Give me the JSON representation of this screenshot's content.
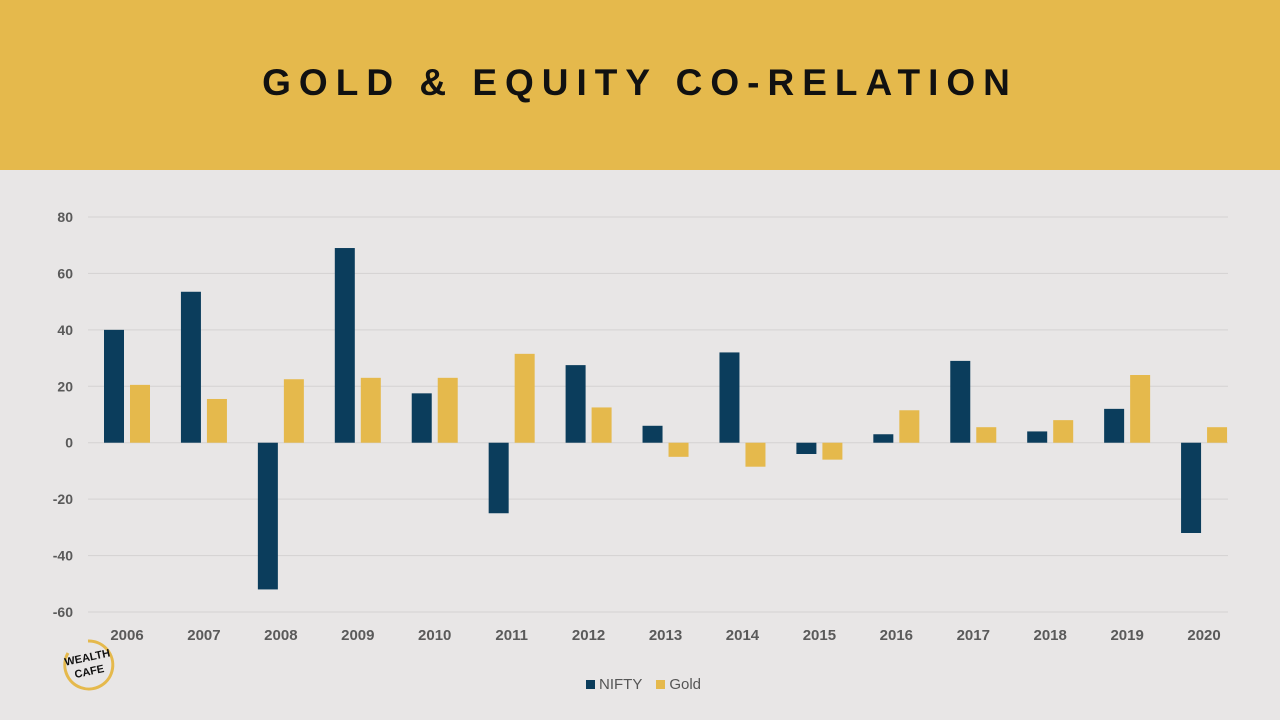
{
  "header": {
    "title": "GOLD & EQUITY CO-RELATION"
  },
  "chart_data": {
    "type": "bar",
    "title": "GOLD & EQUITY CO-RELATION",
    "categories": [
      "2006",
      "2007",
      "2008",
      "2009",
      "2010",
      "2011",
      "2012",
      "2013",
      "2014",
      "2015",
      "2016",
      "2017",
      "2018",
      "2019",
      "2020"
    ],
    "series": [
      {
        "name": "NIFTY",
        "color": "#0b3d5c",
        "values": [
          40,
          53.5,
          -52,
          69,
          17.5,
          -25,
          27.5,
          6,
          32,
          -4,
          3,
          29,
          4,
          12,
          -32
        ]
      },
      {
        "name": "Gold",
        "color": "#e5b94c",
        "values": [
          20.5,
          15.5,
          22.5,
          23,
          23,
          31.5,
          12.5,
          -5,
          -8.5,
          -6,
          11.5,
          5.5,
          8,
          24,
          5.5
        ]
      }
    ],
    "ylim": [
      -60,
      80
    ],
    "yticks": [
      80,
      60,
      40,
      20,
      0,
      -20,
      -40,
      -60
    ],
    "grid": true,
    "legend": "bottom"
  },
  "logo": {
    "line1": "WEALTH",
    "line2": "CAFE",
    "icon": "wealth-cafe-logo"
  }
}
